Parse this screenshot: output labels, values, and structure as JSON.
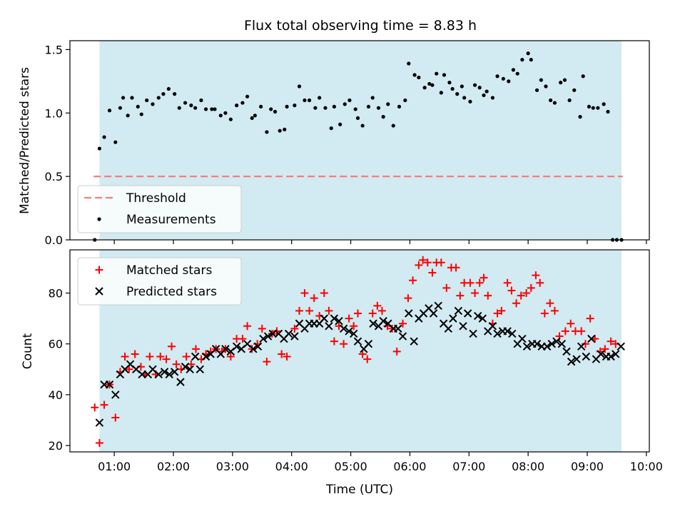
{
  "title": "Flux total observing time = 8.83 h",
  "colors": {
    "shade": "#add8e6",
    "threshold": "#f08080",
    "measurement": "#000000",
    "matched": "#ff0000",
    "predicted": "#000000"
  },
  "chart_data": [
    {
      "type": "scatter",
      "ylabel": "Matched/Predicted stars",
      "xlim": [
        0.25,
        10.05
      ],
      "ylim": [
        0,
        1.57
      ],
      "yticks": [
        0,
        0.5,
        1.0,
        1.5
      ],
      "ytick_labels": [
        "0.0",
        "0.5",
        "1.0",
        "1.5"
      ],
      "shaded_span": [
        0.75,
        9.58
      ],
      "legend_position": "lower-left",
      "threshold": {
        "name": "Threshold",
        "value": 0.5,
        "x_range": [
          0.65,
          9.6
        ],
        "style": "dashed"
      },
      "series": [
        {
          "name": "Measurements",
          "marker": "dot",
          "x": [
            0.67,
            0.75,
            0.83,
            0.92,
            1.02,
            1.1,
            1.15,
            1.23,
            1.3,
            1.4,
            1.46,
            1.55,
            1.65,
            1.75,
            1.83,
            1.92,
            2.02,
            2.1,
            2.2,
            2.3,
            2.37,
            2.47,
            2.55,
            2.65,
            2.7,
            2.8,
            2.88,
            2.97,
            3.07,
            3.17,
            3.25,
            3.33,
            3.38,
            3.48,
            3.58,
            3.65,
            3.72,
            3.8,
            3.88,
            3.92,
            4.05,
            4.13,
            4.22,
            4.3,
            4.4,
            4.47,
            4.57,
            4.67,
            4.72,
            4.82,
            4.9,
            4.98,
            5.08,
            5.12,
            5.2,
            5.3,
            5.37,
            5.47,
            5.55,
            5.63,
            5.72,
            5.82,
            5.92,
            5.98,
            6.08,
            6.15,
            6.25,
            6.33,
            6.38,
            6.45,
            6.53,
            6.58,
            6.67,
            6.72,
            6.8,
            6.88,
            6.92,
            7.02,
            7.1,
            7.18,
            7.25,
            7.3,
            7.4,
            7.48,
            7.58,
            7.67,
            7.75,
            7.82,
            7.9,
            8.0,
            8.05,
            8.15,
            8.22,
            8.3,
            8.38,
            8.45,
            8.55,
            8.62,
            8.7,
            8.78,
            8.88,
            8.93,
            9.03,
            9.1,
            9.18,
            9.28,
            9.35,
            9.43,
            9.5,
            9.58
          ],
          "y": [
            0.0,
            0.72,
            0.81,
            1.02,
            0.77,
            1.04,
            1.12,
            0.98,
            1.12,
            1.05,
            0.99,
            1.1,
            1.07,
            1.12,
            1.15,
            1.19,
            1.15,
            1.04,
            1.08,
            1.06,
            1.04,
            1.1,
            1.03,
            1.03,
            1.03,
            0.98,
            1.0,
            0.95,
            1.06,
            1.08,
            1.13,
            0.96,
            0.98,
            1.05,
            0.85,
            1.03,
            1.01,
            0.86,
            0.87,
            1.05,
            1.06,
            1.21,
            1.1,
            1.1,
            1.04,
            1.12,
            1.04,
            0.88,
            1.05,
            0.91,
            1.07,
            1.1,
            1.03,
            0.96,
            0.9,
            1.05,
            1.12,
            1.04,
            0.97,
            1.07,
            0.9,
            1.05,
            1.1,
            1.39,
            1.3,
            1.28,
            1.2,
            1.23,
            1.22,
            1.31,
            1.16,
            1.3,
            1.24,
            1.19,
            1.15,
            1.21,
            1.12,
            1.09,
            1.22,
            1.2,
            1.14,
            1.17,
            1.12,
            1.29,
            1.27,
            1.25,
            1.34,
            1.31,
            1.42,
            1.47,
            1.42,
            1.18,
            1.26,
            1.21,
            1.1,
            1.08,
            1.24,
            1.26,
            1.1,
            1.18,
            0.97,
            1.29,
            1.05,
            1.04,
            1.04,
            1.07,
            1.01,
            0.0,
            0.0,
            0.0
          ]
        }
      ]
    },
    {
      "type": "scatter",
      "xlabel": "Time (UTC)",
      "ylabel": "Count",
      "xlim": [
        0.25,
        10.05
      ],
      "ylim": [
        17.5,
        97
      ],
      "yticks": [
        20,
        40,
        60,
        80
      ],
      "xticks": [
        1,
        2,
        3,
        4,
        5,
        6,
        7,
        8,
        9,
        10
      ],
      "xtick_labels": [
        "01:00",
        "02:00",
        "03:00",
        "04:00",
        "05:00",
        "06:00",
        "07:00",
        "08:00",
        "09:00",
        "10:00"
      ],
      "shaded_span": [
        0.75,
        9.58
      ],
      "legend_position": "upper-left",
      "series": [
        {
          "name": "Matched stars",
          "marker": "plus",
          "x": [
            0.67,
            0.75,
            0.83,
            0.92,
            1.02,
            1.1,
            1.18,
            1.25,
            1.35,
            1.45,
            1.52,
            1.6,
            1.7,
            1.78,
            1.88,
            1.97,
            2.05,
            2.13,
            2.22,
            2.3,
            2.38,
            2.47,
            2.55,
            2.63,
            2.72,
            2.82,
            2.88,
            2.97,
            3.07,
            3.17,
            3.25,
            3.33,
            3.42,
            3.5,
            3.58,
            3.67,
            3.75,
            3.83,
            3.92,
            4.05,
            4.13,
            4.22,
            4.3,
            4.38,
            4.47,
            4.55,
            4.63,
            4.72,
            4.8,
            4.88,
            4.97,
            5.05,
            5.12,
            5.2,
            5.28,
            5.37,
            5.45,
            5.53,
            5.62,
            5.7,
            5.78,
            5.88,
            5.97,
            6.05,
            6.15,
            6.22,
            6.3,
            6.38,
            6.45,
            6.53,
            6.62,
            6.7,
            6.78,
            6.85,
            6.92,
            7.02,
            7.1,
            7.18,
            7.25,
            7.32,
            7.4,
            7.48,
            7.55,
            7.65,
            7.72,
            7.8,
            7.88,
            7.97,
            8.05,
            8.13,
            8.2,
            8.28,
            8.37,
            8.45,
            8.53,
            8.63,
            8.72,
            8.8,
            8.9,
            8.97,
            9.05,
            9.13,
            9.22,
            9.3,
            9.4,
            9.48
          ],
          "y": [
            35,
            21,
            36,
            44,
            31,
            49,
            55,
            50,
            56,
            51,
            48,
            55,
            48,
            55,
            54,
            59,
            52,
            50,
            55,
            52,
            58,
            54,
            56,
            57,
            58,
            57,
            58,
            55,
            62,
            62,
            67,
            58,
            60,
            66,
            53,
            64,
            65,
            56,
            55,
            66,
            73,
            80,
            73,
            78,
            71,
            80,
            73,
            61,
            67,
            60,
            70,
            67,
            72,
            56,
            54,
            72,
            75,
            73,
            67,
            66,
            57,
            68,
            78,
            85,
            91,
            93,
            92,
            88,
            92,
            92,
            82,
            90,
            90,
            79,
            84,
            84,
            80,
            84,
            86,
            79,
            68,
            72,
            73,
            84,
            81,
            76,
            79,
            80,
            82,
            87,
            84,
            72,
            76,
            73,
            63,
            65,
            68,
            65,
            65,
            60,
            70,
            62,
            57,
            58,
            61,
            60
          ]
        },
        {
          "name": "Predicted stars",
          "marker": "x",
          "x": [
            0.75,
            0.83,
            0.92,
            1.02,
            1.1,
            1.18,
            1.27,
            1.37,
            1.47,
            1.57,
            1.65,
            1.75,
            1.85,
            1.93,
            2.02,
            2.12,
            2.2,
            2.28,
            2.37,
            2.45,
            2.55,
            2.63,
            2.72,
            2.8,
            2.88,
            2.97,
            3.07,
            3.15,
            3.25,
            3.35,
            3.43,
            3.52,
            3.6,
            3.68,
            3.78,
            3.87,
            3.95,
            4.05,
            4.13,
            4.22,
            4.3,
            4.38,
            4.47,
            4.55,
            4.63,
            4.72,
            4.8,
            4.88,
            4.97,
            5.05,
            5.12,
            5.22,
            5.3,
            5.38,
            5.47,
            5.55,
            5.63,
            5.72,
            5.8,
            5.88,
            5.98,
            6.07,
            6.15,
            6.23,
            6.32,
            6.4,
            6.48,
            6.57,
            6.65,
            6.73,
            6.82,
            6.9,
            6.98,
            7.07,
            7.15,
            7.23,
            7.32,
            7.4,
            7.48,
            7.57,
            7.65,
            7.73,
            7.82,
            7.9,
            7.98,
            8.07,
            8.15,
            8.23,
            8.32,
            8.4,
            8.48,
            8.57,
            8.65,
            8.73,
            8.82,
            8.9,
            8.98,
            9.07,
            9.15,
            9.23,
            9.32,
            9.4,
            9.48,
            9.57
          ],
          "y": [
            29,
            44,
            44,
            40,
            48,
            50,
            52,
            50,
            48,
            48,
            50,
            48,
            49,
            48,
            49,
            45,
            51,
            50,
            55,
            50,
            55,
            56,
            58,
            56,
            58,
            57,
            59,
            58,
            60,
            58,
            59,
            62,
            63,
            64,
            64,
            62,
            64,
            63,
            68,
            66,
            68,
            68,
            68,
            70,
            67,
            70,
            69,
            66,
            65,
            64,
            61,
            58,
            60,
            68,
            67,
            69,
            68,
            66,
            66,
            63,
            72,
            61,
            70,
            72,
            74,
            72,
            75,
            68,
            66,
            70,
            73,
            67,
            72,
            64,
            71,
            70,
            65,
            67,
            64,
            65,
            65,
            64,
            60,
            62,
            59,
            60,
            60,
            59,
            59,
            60,
            61,
            60,
            57,
            53,
            54,
            59,
            55,
            62,
            54,
            56,
            55,
            55,
            56,
            59
          ]
        }
      ]
    }
  ]
}
